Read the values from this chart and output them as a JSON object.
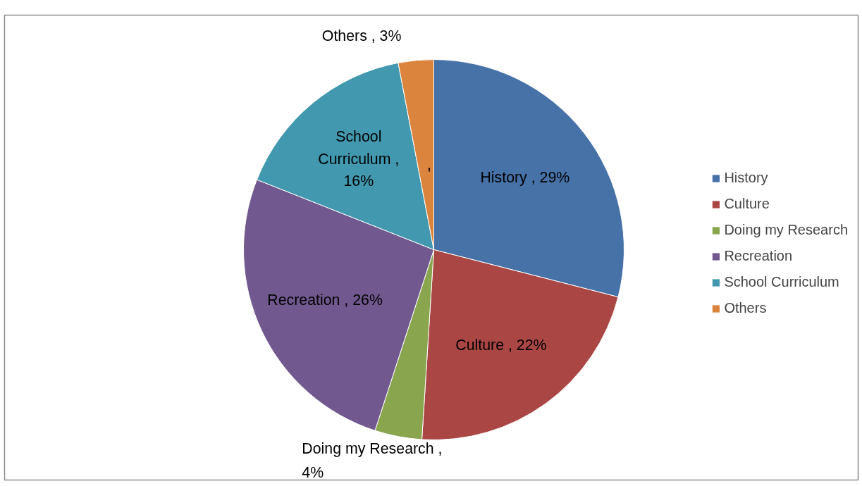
{
  "chart_data": {
    "type": "pie",
    "categories": [
      "History",
      "Culture",
      "Doing my Research",
      "Recreation",
      "School Curriculum",
      "Others"
    ],
    "values": [
      29,
      22,
      4,
      26,
      16,
      3
    ],
    "colors": [
      "#4672a8",
      "#aa4643",
      "#89a54e",
      "#71588f",
      "#4198af",
      "#db843d"
    ],
    "value_labels": [
      "History ,  29%",
      "Culture ,  22%",
      "Doing my Research ,\n4%",
      "Recreation ,  26%",
      "School\nCurriculum ,\n16%",
      "Others , 3%"
    ],
    "annotations": [
      ","
    ],
    "legend": "right"
  }
}
